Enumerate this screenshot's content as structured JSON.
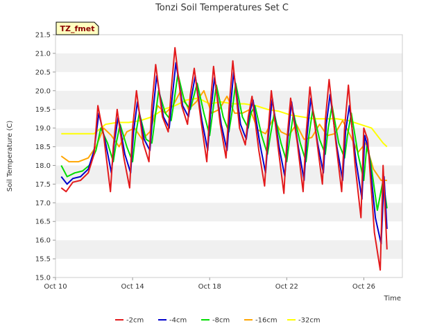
{
  "chart_data": {
    "type": "line",
    "title": "Tonzi Soil Temperatures Set C",
    "badge": "TZ_fmet",
    "xlabel": "Time",
    "ylabel": "Soil Temperature (C)",
    "xlim": [
      0,
      18
    ],
    "ylim": [
      15.0,
      21.5
    ],
    "x_ticks": [
      {
        "x": 0,
        "label": "Oct 10"
      },
      {
        "x": 4,
        "label": "Oct 14"
      },
      {
        "x": 8,
        "label": "Oct 18"
      },
      {
        "x": 12,
        "label": "Oct 22"
      },
      {
        "x": 16,
        "label": "Oct 26"
      }
    ],
    "y_ticks": [
      15.0,
      15.5,
      16.0,
      16.5,
      17.0,
      17.5,
      18.0,
      18.5,
      19.0,
      19.5,
      20.0,
      20.5,
      21.0,
      21.5
    ],
    "grid": "horizontal alternating bands",
    "legend_position": "bottom",
    "series": [
      {
        "name": "-2cm",
        "color": "#e31a1c",
        "x": [
          0.3,
          0.55,
          0.9,
          1.3,
          1.7,
          2.0,
          2.2,
          2.5,
          2.85,
          3.0,
          3.2,
          3.55,
          3.85,
          4.0,
          4.2,
          4.55,
          4.85,
          5.0,
          5.2,
          5.55,
          5.85,
          6.0,
          6.2,
          6.55,
          6.85,
          7.0,
          7.2,
          7.55,
          7.85,
          8.0,
          8.2,
          8.55,
          8.85,
          9.0,
          9.2,
          9.55,
          9.85,
          10.0,
          10.2,
          10.55,
          10.85,
          11.0,
          11.2,
          11.55,
          11.85,
          12.0,
          12.2,
          12.55,
          12.85,
          13.0,
          13.2,
          13.55,
          13.85,
          14.0,
          14.2,
          14.55,
          14.85,
          15.0,
          15.2,
          15.55,
          15.85,
          16.0,
          16.2,
          16.55,
          16.85,
          17.0,
          17.2
        ],
        "y": [
          17.4,
          17.3,
          17.55,
          17.6,
          17.8,
          18.3,
          19.6,
          18.8,
          17.3,
          18.5,
          19.5,
          18.2,
          17.4,
          19.0,
          20.0,
          18.6,
          18.1,
          19.6,
          20.7,
          19.3,
          18.9,
          20.0,
          21.15,
          19.6,
          19.1,
          19.9,
          20.6,
          19.2,
          18.1,
          19.4,
          20.65,
          19.1,
          18.2,
          19.5,
          20.8,
          19.0,
          18.55,
          19.3,
          19.85,
          18.4,
          17.45,
          18.7,
          20.0,
          18.5,
          17.25,
          18.6,
          19.8,
          18.6,
          17.3,
          18.8,
          20.1,
          18.7,
          17.5,
          19.2,
          20.3,
          18.6,
          17.3,
          19.0,
          20.15,
          18.0,
          16.6,
          19.0,
          18.7,
          16.2,
          15.2,
          18.0,
          15.75
        ]
      },
      {
        "name": "-4cm",
        "color": "#0000cc",
        "x": [
          0.3,
          0.6,
          0.9,
          1.3,
          1.7,
          2.0,
          2.25,
          2.6,
          2.9,
          3.05,
          3.25,
          3.6,
          3.9,
          4.05,
          4.25,
          4.6,
          4.9,
          5.05,
          5.25,
          5.6,
          5.9,
          6.05,
          6.25,
          6.6,
          6.9,
          7.05,
          7.25,
          7.6,
          7.9,
          8.05,
          8.25,
          8.6,
          8.9,
          9.05,
          9.25,
          9.6,
          9.9,
          10.05,
          10.25,
          10.6,
          10.9,
          11.05,
          11.25,
          11.6,
          11.9,
          12.05,
          12.25,
          12.6,
          12.9,
          13.05,
          13.25,
          13.6,
          13.9,
          14.05,
          14.25,
          14.6,
          14.9,
          15.05,
          15.25,
          15.6,
          15.9,
          16.05,
          16.25,
          16.6,
          16.9,
          17.05,
          17.2
        ],
        "y": [
          17.7,
          17.5,
          17.65,
          17.7,
          17.9,
          18.4,
          19.4,
          18.6,
          17.8,
          18.6,
          19.3,
          18.3,
          17.8,
          18.9,
          19.7,
          18.7,
          18.4,
          19.4,
          20.4,
          19.3,
          19.0,
          19.8,
          20.75,
          19.6,
          19.3,
          19.8,
          20.4,
          19.2,
          18.4,
          19.4,
          20.35,
          19.1,
          18.4,
          19.4,
          20.5,
          19.1,
          18.7,
          19.35,
          19.75,
          18.6,
          17.8,
          18.8,
          19.8,
          18.5,
          17.7,
          18.7,
          19.7,
          18.5,
          17.6,
          18.8,
          19.8,
          18.6,
          17.8,
          19.1,
          19.9,
          18.5,
          17.6,
          18.9,
          19.6,
          18.1,
          17.1,
          18.8,
          18.4,
          16.6,
          15.9,
          17.7,
          16.3
        ]
      },
      {
        "name": "-8cm",
        "color": "#00dd00",
        "x": [
          0.3,
          0.6,
          1.0,
          1.4,
          1.75,
          2.1,
          2.35,
          2.7,
          3.0,
          3.15,
          3.35,
          3.7,
          4.0,
          4.15,
          4.35,
          4.7,
          5.0,
          5.15,
          5.35,
          5.7,
          6.0,
          6.15,
          6.35,
          6.7,
          7.0,
          7.15,
          7.35,
          7.7,
          8.0,
          8.15,
          8.35,
          8.7,
          9.0,
          9.15,
          9.35,
          9.7,
          10.0,
          10.15,
          10.35,
          10.7,
          11.0,
          11.15,
          11.35,
          11.7,
          12.0,
          12.15,
          12.35,
          12.7,
          13.0,
          13.15,
          13.35,
          13.7,
          14.0,
          14.15,
          14.35,
          14.7,
          15.0,
          15.15,
          15.35,
          15.7,
          16.0,
          16.15,
          16.35,
          16.7,
          17.0,
          17.2
        ],
        "y": [
          18.0,
          17.7,
          17.8,
          17.85,
          18.0,
          18.4,
          19.0,
          18.6,
          18.1,
          18.6,
          19.1,
          18.5,
          18.1,
          18.8,
          19.4,
          18.7,
          18.6,
          19.2,
          20.0,
          19.4,
          19.2,
          19.7,
          20.45,
          19.7,
          19.5,
          19.8,
          20.2,
          19.4,
          18.8,
          19.4,
          20.15,
          19.3,
          18.9,
          19.4,
          20.2,
          19.3,
          19.0,
          19.4,
          19.6,
          18.8,
          18.3,
          18.8,
          19.4,
          18.6,
          18.1,
          18.7,
          19.4,
          18.6,
          18.1,
          18.8,
          19.5,
          18.7,
          18.3,
          19.0,
          19.6,
          18.6,
          18.2,
          18.8,
          19.4,
          18.3,
          17.6,
          18.5,
          18.1,
          16.8,
          17.6,
          16.85
        ]
      },
      {
        "name": "-16cm",
        "color": "#ffa500",
        "x": [
          0.3,
          0.7,
          1.2,
          1.7,
          2.1,
          2.5,
          2.9,
          3.3,
          3.7,
          4.1,
          4.5,
          4.9,
          5.3,
          5.7,
          6.1,
          6.5,
          6.9,
          7.3,
          7.7,
          8.1,
          8.5,
          8.9,
          9.3,
          9.7,
          10.1,
          10.5,
          10.9,
          11.3,
          11.7,
          12.1,
          12.5,
          12.9,
          13.3,
          13.7,
          14.1,
          14.5,
          14.9,
          15.3,
          15.7,
          16.1,
          16.5,
          16.9,
          17.2
        ],
        "y": [
          18.25,
          18.1,
          18.1,
          18.2,
          18.5,
          19.0,
          18.8,
          18.5,
          18.9,
          19.0,
          18.7,
          18.9,
          19.6,
          19.4,
          19.6,
          20.0,
          19.5,
          19.7,
          20.0,
          19.4,
          19.5,
          19.85,
          19.4,
          19.4,
          19.5,
          18.95,
          18.85,
          19.25,
          18.9,
          18.8,
          19.1,
          18.7,
          18.75,
          19.1,
          18.8,
          18.85,
          19.2,
          18.8,
          18.35,
          18.6,
          17.9,
          17.6,
          17.6
        ]
      },
      {
        "name": "-32cm",
        "color": "#ffff00",
        "x": [
          0.3,
          0.8,
          1.5,
          2.0,
          2.6,
          3.2,
          3.8,
          4.4,
          5.0,
          5.6,
          6.2,
          6.8,
          7.4,
          8.0,
          8.6,
          9.2,
          9.8,
          10.4,
          11.0,
          11.6,
          12.2,
          12.8,
          13.4,
          14.0,
          14.6,
          15.2,
          15.8,
          16.4,
          17.0,
          17.2
        ],
        "y": [
          18.85,
          18.85,
          18.85,
          18.85,
          19.1,
          19.15,
          19.15,
          19.2,
          19.3,
          19.5,
          19.6,
          19.75,
          19.8,
          19.65,
          19.7,
          19.65,
          19.65,
          19.6,
          19.5,
          19.45,
          19.35,
          19.3,
          19.25,
          19.25,
          19.25,
          19.2,
          19.1,
          19.0,
          18.6,
          18.5
        ]
      }
    ]
  }
}
